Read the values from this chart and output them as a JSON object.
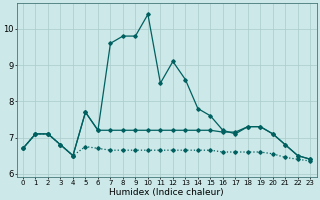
{
  "xlabel": "Humidex (Indice chaleur)",
  "x_values": [
    0,
    1,
    2,
    3,
    4,
    5,
    6,
    7,
    8,
    9,
    10,
    11,
    12,
    13,
    14,
    15,
    16,
    17,
    18,
    19,
    20,
    21,
    22,
    23
  ],
  "line1": [
    6.7,
    7.1,
    7.1,
    6.8,
    6.5,
    7.7,
    7.2,
    9.6,
    9.8,
    9.8,
    10.4,
    8.5,
    9.1,
    8.6,
    7.8,
    7.6,
    7.2,
    7.1,
    7.3,
    7.3,
    7.1,
    6.8,
    6.5,
    6.4
  ],
  "line2": [
    6.7,
    7.1,
    7.1,
    6.8,
    6.5,
    7.7,
    7.2,
    7.2,
    7.2,
    7.2,
    7.2,
    7.2,
    7.2,
    7.2,
    7.2,
    7.2,
    7.15,
    7.15,
    7.3,
    7.3,
    7.1,
    6.8,
    6.5,
    6.4
  ],
  "line3": [
    6.7,
    7.1,
    7.1,
    6.8,
    6.5,
    6.75,
    6.7,
    6.65,
    6.65,
    6.65,
    6.65,
    6.65,
    6.65,
    6.65,
    6.65,
    6.65,
    6.6,
    6.6,
    6.6,
    6.6,
    6.55,
    6.45,
    6.4,
    6.35
  ],
  "ylim": [
    5.9,
    10.7
  ],
  "yticks": [
    6,
    7,
    8,
    9,
    10
  ],
  "bg_color": "#cce8e8",
  "grid_color": "#aacccc",
  "line_color": "#006060",
  "line_width": 0.9,
  "marker": "D",
  "marker_size": 1.8,
  "tick_fontsize": 5.0,
  "xlabel_fontsize": 6.5
}
